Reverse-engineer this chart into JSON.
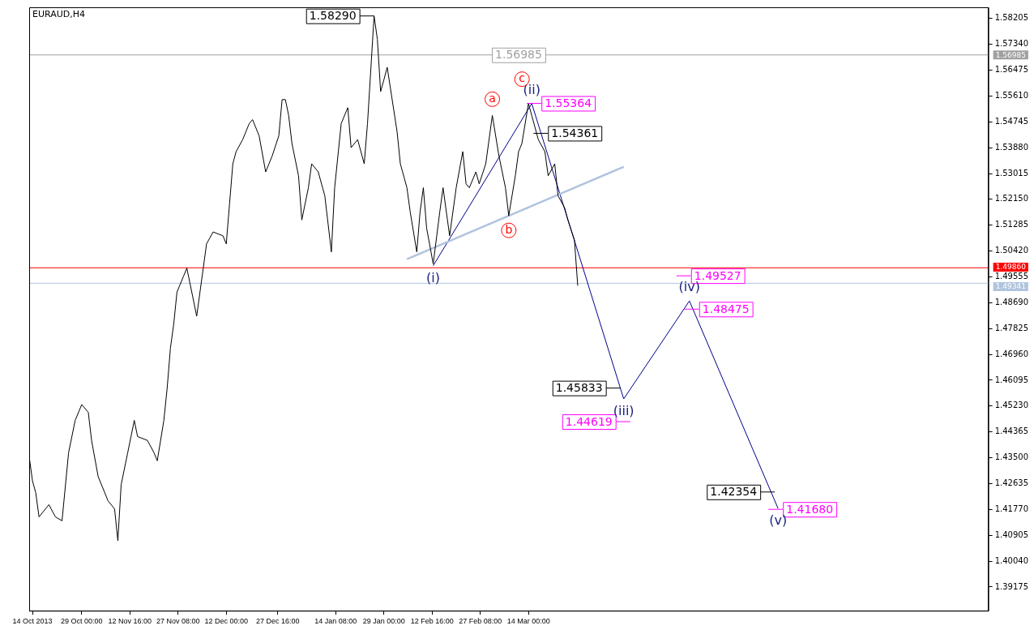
{
  "chart_data": {
    "type": "line",
    "title": "EURAUD,H4",
    "marker": "none",
    "line_style": "solid",
    "xlim": [
      "2013-10-13",
      "2014-08-01"
    ],
    "ylim": [
      1.3838,
      1.5858
    ],
    "xticks": [
      {
        "value": "2013-10-14",
        "label": "14 Oct 2013"
      },
      {
        "value": "2013-10-29T00:00",
        "label": "29 Oct 00:00"
      },
      {
        "value": "2013-11-12T16:00",
        "label": "12 Nov 16:00"
      },
      {
        "value": "2013-11-27T08:00",
        "label": "27 Nov 08:00"
      },
      {
        "value": "2013-12-12T00:00",
        "label": "12 Dec 00:00"
      },
      {
        "value": "2013-12-27T16:00",
        "label": "27 Dec 16:00"
      },
      {
        "value": "2014-01-14T08:00",
        "label": "14 Jan 08:00"
      },
      {
        "value": "2014-01-29T00:00",
        "label": "29 Jan 00:00"
      },
      {
        "value": "2014-02-12T16:00",
        "label": "12 Feb 16:00"
      },
      {
        "value": "2014-02-27T08:00",
        "label": "27 Feb 08:00"
      },
      {
        "value": "2014-03-14T00:00",
        "label": "14 Mar 00:00"
      }
    ],
    "yticks": [
      1.58205,
      {
        "value": 1.5734,
        "label": "1.57340"
      },
      1.56475,
      {
        "value": 1.5561,
        "label": "1.55610"
      },
      1.54745,
      {
        "value": 1.5388,
        "label": "1.53880"
      },
      1.53015,
      {
        "value": 1.5215,
        "label": "1.52150"
      },
      1.51285,
      {
        "value": 1.5042,
        "label": "1.50420"
      },
      1.49555,
      {
        "value": 1.4869,
        "label": "1.48690"
      },
      1.47825,
      {
        "value": 1.4696,
        "label": "1.46960"
      },
      1.46095,
      {
        "value": 1.4523,
        "label": "1.45230"
      },
      1.44365,
      {
        "value": 1.435,
        "label": "1.43500"
      },
      1.42635,
      {
        "value": 1.4177,
        "label": "1.41770"
      },
      1.40905,
      {
        "value": 1.4004,
        "label": "1.40040"
      },
      1.39175
    ],
    "series": [
      {
        "color": "#000000",
        "x": [
          "2013-10-13",
          "2013-10-14",
          "2013-10-15",
          "2013-10-16",
          "2013-10-19",
          "2013-10-21",
          "2013-10-23",
          "2013-10-25",
          "2013-10-27",
          "2013-10-29",
          "2013-10-31",
          "2013-11-01",
          "2013-11-03",
          "2013-11-06",
          "2013-11-08",
          "2013-11-09",
          "2013-11-10",
          "2013-11-12",
          "2013-11-14",
          "2013-11-15",
          "2013-11-18",
          "2013-11-20",
          "2013-11-21",
          "2013-11-23",
          "2013-11-24",
          "2013-11-25",
          "2013-11-26",
          "2013-11-27",
          "2013-11-29",
          "2013-11-30",
          "2013-12-02",
          "2013-12-03",
          "2013-12-05",
          "2013-12-06",
          "2013-12-08",
          "2013-12-11",
          "2013-12-12",
          "2013-12-13",
          "2013-12-14",
          "2013-12-15",
          "2013-12-17",
          "2013-12-19",
          "2013-12-20",
          "2013-12-22",
          "2013-12-24",
          "2013-12-25",
          "2013-12-26",
          "2013-12-28",
          "2013-12-29",
          "2013-12-30",
          "2013-12-31",
          "2014-01-01",
          "2014-01-03",
          "2014-01-04",
          "2014-01-06",
          "2014-01-07",
          "2014-01-09",
          "2014-01-11",
          "2014-01-13",
          "2014-01-14",
          "2014-01-16",
          "2014-01-18",
          "2014-01-19",
          "2014-01-21",
          "2014-01-23",
          "2014-01-24",
          "2014-01-26",
          "2014-01-27",
          "2014-01-28",
          "2014-01-29",
          "2014-01-30",
          "2014-02-02",
          "2014-02-03",
          "2014-02-05",
          "2014-02-06",
          "2014-02-08",
          "2014-02-09",
          "2014-02-10",
          "2014-02-11",
          "2014-02-13",
          "2014-02-15",
          "2014-02-16",
          "2014-02-18",
          "2014-02-20",
          "2014-02-22",
          "2014-02-23",
          "2014-02-24",
          "2014-02-26",
          "2014-02-27",
          "2014-03-01",
          "2014-03-03",
          "2014-03-05",
          "2014-03-07",
          "2014-03-08",
          "2014-03-10",
          "2014-03-11",
          "2014-03-12",
          "2014-03-14",
          "2014-03-15",
          "2014-03-17",
          "2014-03-19",
          "2014-03-20",
          "2014-03-22",
          "2014-03-23",
          "2014-03-25",
          "2014-03-26",
          "2014-03-28",
          "2014-03-29"
        ],
        "values": [
          1.4354,
          1.4273,
          1.4233,
          1.4152,
          1.4193,
          1.4152,
          1.4139,
          1.4367,
          1.4475,
          1.4528,
          1.4502,
          1.4408,
          1.4287,
          1.4206,
          1.4179,
          1.4072,
          1.426,
          1.4367,
          1.4475,
          1.4421,
          1.4408,
          1.4367,
          1.434,
          1.4475,
          1.4582,
          1.4717,
          1.4797,
          1.4905,
          1.4958,
          1.4985,
          1.4878,
          1.4824,
          1.4985,
          1.5066,
          1.5106,
          1.5093,
          1.5066,
          1.52,
          1.5334,
          1.5375,
          1.5415,
          1.5469,
          1.5482,
          1.5428,
          1.5307,
          1.5334,
          1.5361,
          1.5428,
          1.5549,
          1.5549,
          1.5496,
          1.5402,
          1.5294,
          1.5146,
          1.5254,
          1.5334,
          1.5307,
          1.5227,
          1.5039,
          1.5254,
          1.5469,
          1.5522,
          1.5388,
          1.5415,
          1.5334,
          1.5469,
          1.5829,
          1.5751,
          1.5576,
          1.5616,
          1.5657,
          1.5442,
          1.5334,
          1.5254,
          1.5173,
          1.5039,
          1.5173,
          1.5254,
          1.5119,
          1.4999,
          1.5173,
          1.5254,
          1.5093,
          1.5254,
          1.5375,
          1.5267,
          1.5254,
          1.5307,
          1.5267,
          1.5334,
          1.5496,
          1.5361,
          1.5254,
          1.516,
          1.5294,
          1.5375,
          1.5402,
          1.5536,
          1.5496,
          1.5415,
          1.5375,
          1.5294,
          1.5334,
          1.5227,
          1.5187,
          1.5146,
          1.5079,
          1.4926
        ]
      },
      {
        "color": "#b0c4de",
        "x": [
          "2014-02-05",
          "2014-04-12"
        ],
        "values": [
          1.5015,
          1.5324
        ]
      },
      {
        "color": "#00008b",
        "x": [
          "2014-02-13",
          "2014-03-15",
          "2014-04-12",
          "2014-05-02",
          "2014-05-29"
        ],
        "values": [
          1.4993,
          1.5536,
          1.4547,
          1.4875,
          1.418
        ]
      }
    ],
    "ref_lines": [
      {
        "axis": "y",
        "value": 1.56985,
        "label": "1.56985",
        "color": "#a0a0a0"
      },
      {
        "axis": "y",
        "value": 1.4986,
        "label": "1.49860",
        "color": "#ff0000"
      },
      {
        "axis": "y",
        "value": 1.49341,
        "label": "1.49341",
        "color": "#b0c4de"
      }
    ],
    "annotations": [
      {
        "text": "1.58290",
        "x": "2014-01-26",
        "y": 1.5829
      },
      {
        "text": "1.56985",
        "x": "2014-03-11",
        "y": 1.56985
      },
      {
        "text": "1.55364",
        "x": "2014-03-15",
        "y": 1.55364
      },
      {
        "text": "1.54361",
        "x": "2014-03-17",
        "y": 1.54361
      },
      "1.49527",
      {
        "text": "1.48475",
        "x": "2014-05-02",
        "y": 1.48475
      },
      {
        "text": "1.45833",
        "x": "2014-04-11",
        "y": 1.45833
      },
      "1.44619",
      {
        "text": "1.42354",
        "x": "2014-05-28",
        "y": 1.42354
      },
      "1.41680",
      {
        "text": "(i)",
        "x": "2014-02-13",
        "y": 1.4993
      },
      {
        "text": "(ii)",
        "x": "2014-03-15",
        "y": 1.5536
      },
      {
        "text": "(iii)",
        "x": "2014-04-12",
        "y": 1.4547
      },
      {
        "text": "(iv)",
        "x": "2014-05-02",
        "y": 1.4875
      },
      {
        "text": "(v)",
        "x": "2014-05-29",
        "y": 1.418
      },
      {
        "text": "a",
        "x": "2014-03-03",
        "y": 1.5496
      },
      {
        "text": "b",
        "x": "2014-03-08",
        "y": 1.516
      },
      "c"
    ]
  }
}
